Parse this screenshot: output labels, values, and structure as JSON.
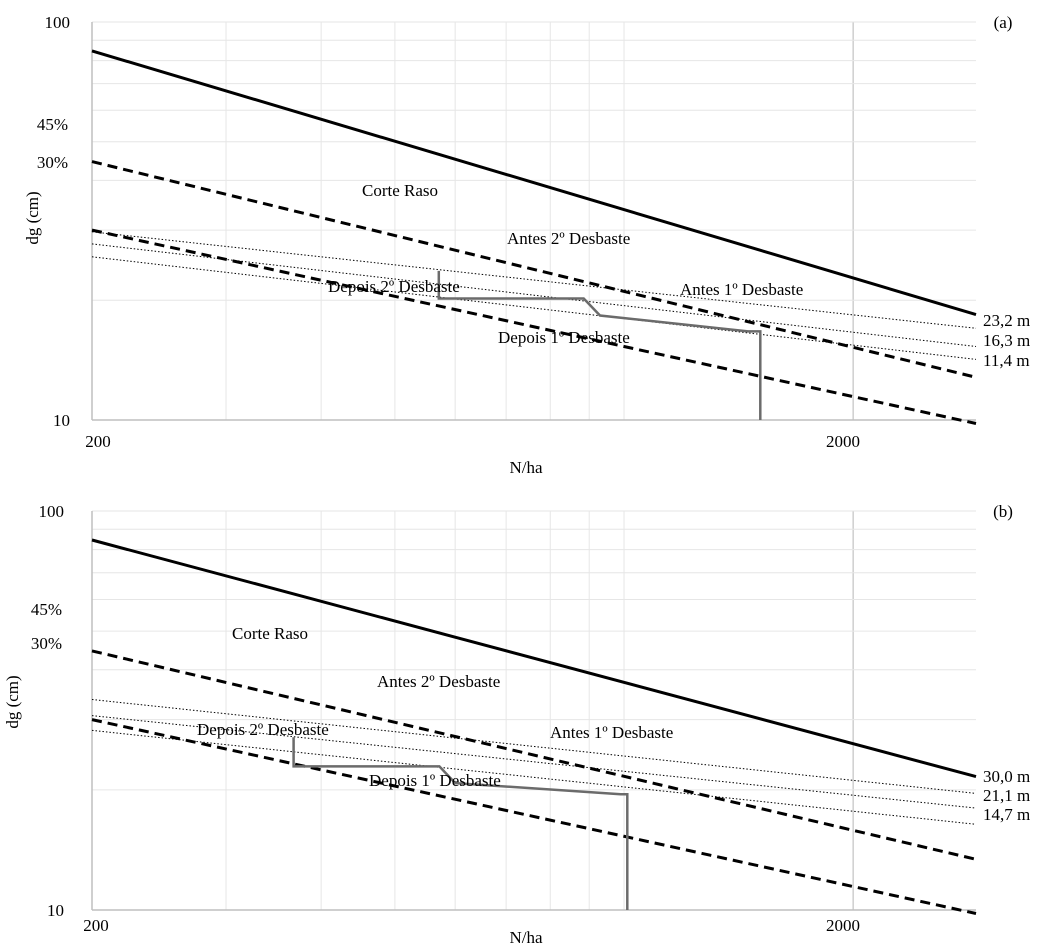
{
  "charts": [
    {
      "panel_label": "(a)",
      "xlabel": "N/ha",
      "ylabel": "dg (cm)",
      "x_ticks": [
        "200",
        "2000"
      ],
      "y_ticks": [
        "10",
        "100"
      ],
      "y_pct_ticks": [
        "45%",
        "30%"
      ],
      "height_labels": [
        "23,2 m",
        "16,3 m",
        "11,4 m"
      ],
      "annotations": [
        "Corte Raso",
        "Antes 2º Desbaste",
        "Depois 2º Desbaste",
        "Antes 1º Desbaste",
        "Depois 1º Desbaste"
      ]
    },
    {
      "panel_label": "(b)",
      "xlabel": "N/ha",
      "ylabel": "dg (cm)",
      "x_ticks": [
        "200",
        "2000"
      ],
      "y_ticks": [
        "10",
        "100"
      ],
      "y_pct_ticks": [
        "45%",
        "30%"
      ],
      "height_labels": [
        "30,0 m",
        "21,1 m",
        "14,7 m"
      ],
      "annotations": [
        "Corte Raso",
        "Antes 2º Desbaste",
        "Depois 2º Desbaste",
        "Antes 1º Desbaste",
        "Depois 1º Desbaste"
      ]
    }
  ],
  "chart_data": [
    {
      "type": "line",
      "title": "",
      "xlabel": "N/ha",
      "ylabel": "dg (cm)",
      "x_scale": "log",
      "y_scale": "log",
      "xlim": [
        200,
        2900
      ],
      "ylim": [
        10,
        100
      ],
      "grid": true,
      "series": [
        {
          "style": "solid-thick",
          "x": [
            200,
            2900
          ],
          "y": [
            84.6,
            18.4
          ]
        },
        {
          "style": "dashed",
          "x": [
            200,
            2900
          ],
          "y": [
            44.6,
            12.8
          ]
        },
        {
          "style": "dashed",
          "x": [
            200,
            2900
          ],
          "y": [
            30.0,
            9.8
          ]
        },
        {
          "name": "23,2 m",
          "style": "dotted",
          "x": [
            200,
            2900
          ],
          "y": [
            29.7,
            17.0
          ]
        },
        {
          "name": "16,3 m",
          "style": "dotted",
          "x": [
            200,
            2900
          ],
          "y": [
            27.7,
            15.3
          ]
        },
        {
          "name": "11,4 m",
          "style": "dotted",
          "x": [
            200,
            2900
          ],
          "y": [
            25.7,
            14.2
          ]
        },
        {
          "name": "Trajectory",
          "style": "step",
          "x": [
            1510,
            1510,
            1455,
            930,
            930,
            885,
            571,
            571
          ],
          "y": [
            10.0,
            16.7,
            16.7,
            18.3,
            18.3,
            20.2,
            20.2,
            23.7
          ]
        }
      ]
    },
    {
      "type": "line",
      "title": "",
      "xlabel": "N/ha",
      "ylabel": "dg (cm)",
      "x_scale": "log",
      "y_scale": "log",
      "xlim": [
        200,
        2900
      ],
      "ylim": [
        10,
        100
      ],
      "grid": true,
      "series": [
        {
          "style": "solid-thick",
          "x": [
            200,
            2900
          ],
          "y": [
            84.6,
            21.6
          ]
        },
        {
          "style": "dashed",
          "x": [
            200,
            2900
          ],
          "y": [
            44.6,
            13.4
          ]
        },
        {
          "style": "dashed",
          "x": [
            200,
            2900
          ],
          "y": [
            30.0,
            9.8
          ]
        },
        {
          "name": "30,0 m",
          "style": "dotted",
          "x": [
            200,
            2900
          ],
          "y": [
            33.7,
            19.6
          ]
        },
        {
          "name": "21,1 m",
          "style": "dotted",
          "x": [
            200,
            2900
          ],
          "y": [
            30.7,
            18.0
          ]
        },
        {
          "name": "14,7 m",
          "style": "dotted",
          "x": [
            200,
            2900
          ],
          "y": [
            28.2,
            16.4
          ]
        },
        {
          "name": "Trajectory",
          "style": "step",
          "x": [
            1010,
            1010,
            990,
            600,
            600,
            572,
            368,
            368
          ],
          "y": [
            10.0,
            19.5,
            19.5,
            20.8,
            20.8,
            22.9,
            22.9,
            27.1
          ]
        }
      ]
    }
  ]
}
